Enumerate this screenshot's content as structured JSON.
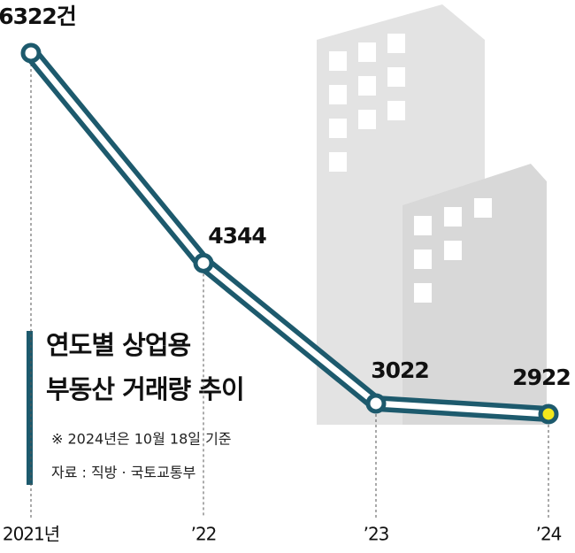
{
  "chart_data": {
    "type": "line",
    "title_lines": [
      "연도별 상업용",
      "부동산 거래량 추이"
    ],
    "note": "※ 2024년은 10월 18일 기준",
    "source": "자료 : 직방 · 국토교통부",
    "categories": [
      "2021년",
      "’22",
      "’23",
      "’24"
    ],
    "values": [
      6322,
      4344,
      3022,
      2922
    ],
    "value_labels": [
      "6322건",
      "4344",
      "3022",
      "2922"
    ],
    "color": "#1d5a6d",
    "highlight_color": "#f3e81c",
    "ylim": [
      2500,
      6500
    ]
  }
}
